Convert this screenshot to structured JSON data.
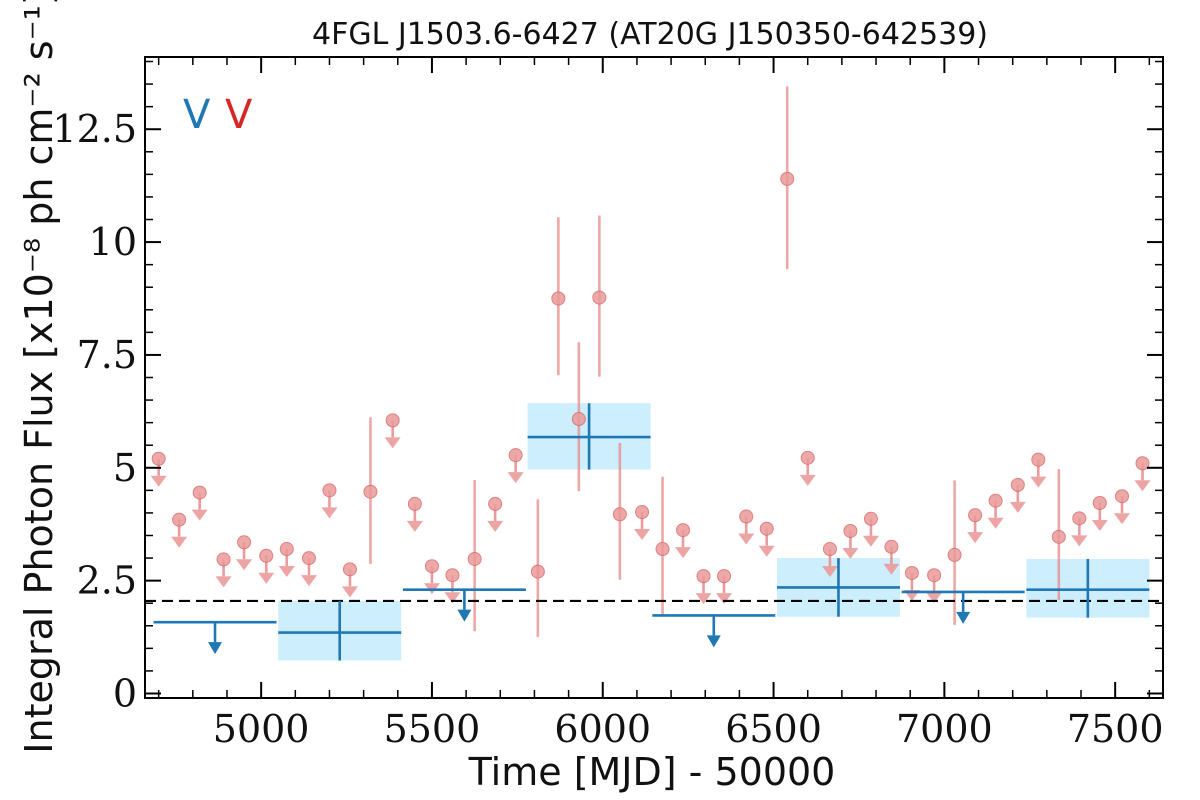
{
  "chart_data": {
    "type": "scatter",
    "title": "4FGL J1503.6-6427 (AT20G J150350-642539)",
    "xlabel": "Time [MJD] - 50000",
    "ylabel": "Integral Photon Flux [x10⁻⁸ ph cm⁻² s⁻¹]",
    "xlim": [
      4660,
      7640
    ],
    "ylim": [
      -0.1,
      14.1
    ],
    "x_ticks": [
      5000,
      5500,
      6000,
      6500,
      7000,
      7500
    ],
    "y_ticks": [
      0,
      2.5,
      5,
      7.5,
      10,
      12.5
    ],
    "y_tick_labels": [
      "0",
      "2.5",
      "5",
      "7.5",
      "10",
      "12.5"
    ],
    "mean_flux": 2.05,
    "legend": {
      "position": "top-left",
      "entries": [
        {
          "label": "V",
          "color": "#1f77b4"
        },
        {
          "label": "V",
          "color": "#d62728"
        }
      ]
    },
    "colors": {
      "long_bins": "#1f77b4",
      "long_bins_band": "#cdeefc",
      "short_bins": "#e88a8a",
      "short_bins_marker": "#ea9a9a"
    },
    "series": [
      {
        "name": "",
        "color": "#1f77b4",
        "kind": "long-bin",
        "points": [
          {
            "x": 4865,
            "y": 1.58,
            "xerr": 180,
            "upper_limit": true
          },
          {
            "x": 5230,
            "y": 1.35,
            "xerr": 180,
            "yerr_lo": 0.62,
            "yerr_hi": 0.7
          },
          {
            "x": 5595,
            "y": 2.3,
            "xerr": 180,
            "upper_limit": true
          },
          {
            "x": 5960,
            "y": 5.68,
            "xerr": 180,
            "yerr_lo": 0.72,
            "yerr_hi": 0.75
          },
          {
            "x": 6325,
            "y": 1.73,
            "xerr": 180,
            "upper_limit": true
          },
          {
            "x": 6690,
            "y": 2.35,
            "xerr": 180,
            "yerr_lo": 0.65,
            "yerr_hi": 0.65
          },
          {
            "x": 7055,
            "y": 2.25,
            "xerr": 180,
            "upper_limit": true
          },
          {
            "x": 7420,
            "y": 2.3,
            "xerr": 180,
            "yerr_lo": 0.62,
            "yerr_hi": 0.68
          }
        ]
      },
      {
        "name": "",
        "color": "#e88a8a",
        "kind": "short-bin",
        "points": [
          {
            "x": 4700,
            "y": 5.2,
            "upper_limit": true
          },
          {
            "x": 4760,
            "y": 3.85,
            "upper_limit": true
          },
          {
            "x": 4820,
            "y": 4.45,
            "upper_limit": true
          },
          {
            "x": 4890,
            "y": 2.97,
            "upper_limit": true
          },
          {
            "x": 4950,
            "y": 3.35,
            "upper_limit": true
          },
          {
            "x": 5015,
            "y": 3.05,
            "upper_limit": true
          },
          {
            "x": 5075,
            "y": 3.2,
            "upper_limit": true
          },
          {
            "x": 5140,
            "y": 3.0,
            "upper_limit": true
          },
          {
            "x": 5200,
            "y": 4.5,
            "upper_limit": true
          },
          {
            "x": 5260,
            "y": 2.75,
            "upper_limit": true
          },
          {
            "x": 5320,
            "y": 4.47,
            "yerr_lo": 1.6,
            "yerr_hi": 1.65
          },
          {
            "x": 5385,
            "y": 6.05,
            "upper_limit": true
          },
          {
            "x": 5450,
            "y": 4.2,
            "upper_limit": true
          },
          {
            "x": 5500,
            "y": 2.82,
            "upper_limit": true
          },
          {
            "x": 5560,
            "y": 2.62,
            "upper_limit": true
          },
          {
            "x": 5625,
            "y": 2.98,
            "yerr_lo": 1.6,
            "yerr_hi": 1.75
          },
          {
            "x": 5685,
            "y": 4.2,
            "upper_limit": true
          },
          {
            "x": 5745,
            "y": 5.28,
            "upper_limit": true
          },
          {
            "x": 5810,
            "y": 2.7,
            "yerr_lo": 1.45,
            "yerr_hi": 1.6
          },
          {
            "x": 5870,
            "y": 8.75,
            "yerr_lo": 1.7,
            "yerr_hi": 1.8
          },
          {
            "x": 5930,
            "y": 6.08,
            "yerr_lo": 1.6,
            "yerr_hi": 1.7
          },
          {
            "x": 5990,
            "y": 8.77,
            "yerr_lo": 1.75,
            "yerr_hi": 1.82
          },
          {
            "x": 6050,
            "y": 3.97,
            "yerr_lo": 1.45,
            "yerr_hi": 1.58
          },
          {
            "x": 6115,
            "y": 4.02,
            "upper_limit": true
          },
          {
            "x": 6175,
            "y": 3.2,
            "yerr_lo": 1.45,
            "yerr_hi": 1.6
          },
          {
            "x": 6235,
            "y": 3.62,
            "upper_limit": true
          },
          {
            "x": 6295,
            "y": 2.6,
            "upper_limit": true
          },
          {
            "x": 6355,
            "y": 2.6,
            "upper_limit": true
          },
          {
            "x": 6420,
            "y": 3.92,
            "upper_limit": true
          },
          {
            "x": 6480,
            "y": 3.65,
            "upper_limit": true
          },
          {
            "x": 6540,
            "y": 11.4,
            "yerr_lo": 2.0,
            "yerr_hi": 2.05
          },
          {
            "x": 6600,
            "y": 5.22,
            "upper_limit": true
          },
          {
            "x": 6665,
            "y": 3.2,
            "upper_limit": true
          },
          {
            "x": 6725,
            "y": 3.6,
            "upper_limit": true
          },
          {
            "x": 6785,
            "y": 3.87,
            "upper_limit": true
          },
          {
            "x": 6845,
            "y": 3.25,
            "upper_limit": true
          },
          {
            "x": 6905,
            "y": 2.67,
            "upper_limit": true
          },
          {
            "x": 6970,
            "y": 2.62,
            "upper_limit": true
          },
          {
            "x": 7030,
            "y": 3.07,
            "yerr_lo": 1.55,
            "yerr_hi": 1.65
          },
          {
            "x": 7090,
            "y": 3.95,
            "upper_limit": true
          },
          {
            "x": 7150,
            "y": 4.27,
            "upper_limit": true
          },
          {
            "x": 7215,
            "y": 4.62,
            "upper_limit": true
          },
          {
            "x": 7275,
            "y": 5.18,
            "upper_limit": true
          },
          {
            "x": 7335,
            "y": 3.47,
            "yerr_lo": 1.4,
            "yerr_hi": 1.5
          },
          {
            "x": 7395,
            "y": 3.88,
            "upper_limit": true
          },
          {
            "x": 7455,
            "y": 4.22,
            "upper_limit": true
          },
          {
            "x": 7520,
            "y": 4.37,
            "upper_limit": true
          },
          {
            "x": 7580,
            "y": 5.1,
            "upper_limit": true
          }
        ]
      }
    ]
  }
}
